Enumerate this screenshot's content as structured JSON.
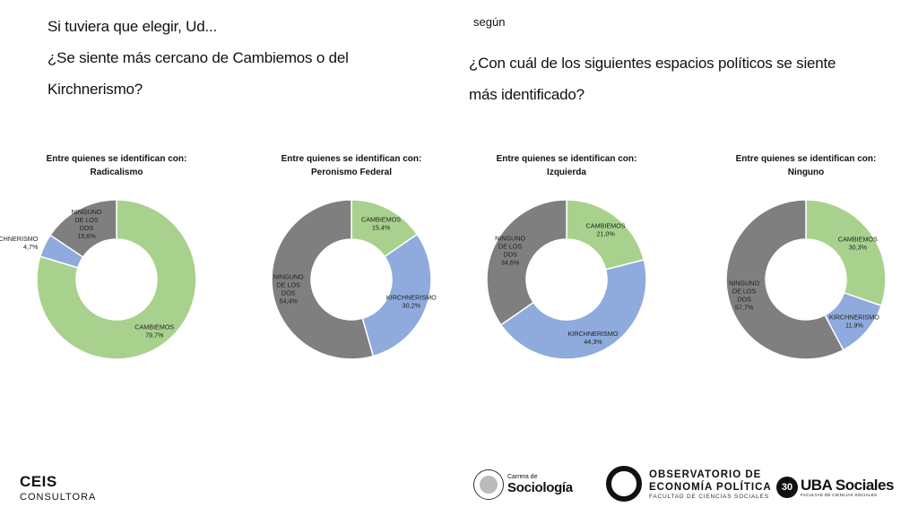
{
  "header": {
    "left_lines": [
      "Si tuviera que elegir, Ud...",
      "¿Se siente más cercano de Cambiemos o del",
      "Kirchnerismo?"
    ],
    "right_intro": "según",
    "right_lines": [
      "¿Con cuál de los siguientes espacios políticos se siente",
      "más identificado?"
    ]
  },
  "colors": {
    "cambiemos": "#a8d18d",
    "kirchnerismo": "#8faadc",
    "ninguno": "#7f7f7f"
  },
  "chart_data": [
    {
      "type": "pie",
      "title_lines": [
        "Entre quienes se identifican con:",
        "Radicalismo"
      ],
      "slices": [
        {
          "key": "cambiemos",
          "label_lines": [
            "CAMBIEMOS"
          ],
          "value": 79.7,
          "value_label": "79,7%"
        },
        {
          "key": "kirchnerismo",
          "label_lines": [
            "KIRCHNERISMO"
          ],
          "value": 4.7,
          "value_label": "4,7%"
        },
        {
          "key": "ninguno",
          "label_lines": [
            "NINGUNO",
            "DE LOS",
            "DOS"
          ],
          "value": 15.6,
          "value_label": "15,6%"
        }
      ]
    },
    {
      "type": "pie",
      "title_lines": [
        "Entre quienes se identifican con:",
        "Peronismo Federal"
      ],
      "slices": [
        {
          "key": "cambiemos",
          "label_lines": [
            "CAMBIEMOS"
          ],
          "value": 15.4,
          "value_label": "15,4%"
        },
        {
          "key": "kirchnerismo",
          "label_lines": [
            "KIRCHNERISMO"
          ],
          "value": 30.2,
          "value_label": "30,2%"
        },
        {
          "key": "ninguno",
          "label_lines": [
            "NINGUNO",
            "DE LOS",
            "DOS"
          ],
          "value": 54.4,
          "value_label": "54,4%"
        }
      ]
    },
    {
      "type": "pie",
      "title_lines": [
        "Entre quienes se identifican con:",
        "Izquierda"
      ],
      "slices": [
        {
          "key": "cambiemos",
          "label_lines": [
            "CAMBIEMOS"
          ],
          "value": 21.0,
          "value_label": "21,0%"
        },
        {
          "key": "kirchnerismo",
          "label_lines": [
            "KIRCHNERISMO"
          ],
          "value": 44.3,
          "value_label": "44,3%"
        },
        {
          "key": "ninguno",
          "label_lines": [
            "NINGUNO",
            "DE LOS",
            "DOS"
          ],
          "value": 34.6,
          "value_label": "34,6%"
        }
      ]
    },
    {
      "type": "pie",
      "title_lines": [
        "Entre quienes se identifican con:",
        "Ninguno"
      ],
      "slices": [
        {
          "key": "cambiemos",
          "label_lines": [
            "CAMBIEMOS"
          ],
          "value": 30.3,
          "value_label": "30,3%"
        },
        {
          "key": "kirchnerismo",
          "label_lines": [
            "KIRCHNERISMO"
          ],
          "value": 11.9,
          "value_label": "11,9%"
        },
        {
          "key": "ninguno",
          "label_lines": [
            "NINGUNO",
            "DE LOS",
            "DOS"
          ],
          "value": 57.7,
          "value_label": "57,7%"
        }
      ]
    }
  ],
  "footer": {
    "ceis_main": "CEIS",
    "ceis_sub": "CONSULTORA",
    "sociologia_l1": "Carrera de",
    "sociologia_l2": "Sociología",
    "obs_l1": "OBSERVATORIO DE",
    "obs_l2": "ECONOMÍA POLÍTICA",
    "obs_l3": "FACULTAD DE CIENCIAS SOCIALES",
    "uba_badge": "30",
    "uba_l1": "UBA Sociales",
    "uba_l2": "FACULTAD DE CIENCIAS SOCIALES"
  }
}
